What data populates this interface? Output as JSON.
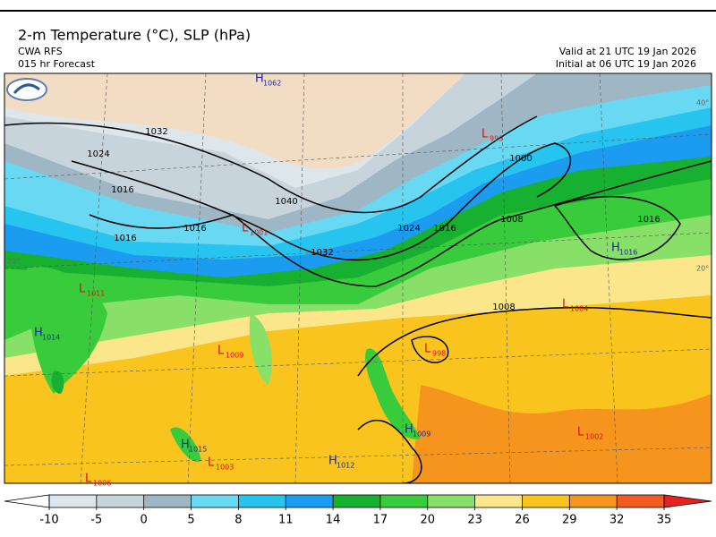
{
  "header": {
    "title": "2-m Temperature (°C), SLP (hPa)",
    "model": "CWA RFS",
    "forecast": "015 hr Forecast",
    "valid": "Valid at 21 UTC 19 Jan 2026",
    "initial": "Initial at 06 UTC 19 Jan 2026"
  },
  "map": {
    "pressure_centers": [
      {
        "type": "H",
        "value": 1062
      },
      {
        "type": "L",
        "value": 993
      },
      {
        "type": "L",
        "value": 1001
      },
      {
        "type": "L",
        "value": 1011
      },
      {
        "type": "H",
        "value": 1014
      },
      {
        "type": "L",
        "value": 1009
      },
      {
        "type": "L",
        "value": 998
      },
      {
        "type": "L",
        "value": 1004
      },
      {
        "type": "H",
        "value": 1016
      },
      {
        "type": "H",
        "value": 1015
      },
      {
        "type": "L",
        "value": 1003
      },
      {
        "type": "H",
        "value": 1012
      },
      {
        "type": "H",
        "value": 1009
      },
      {
        "type": "L",
        "value": 1002
      },
      {
        "type": "L",
        "value": 1006
      }
    ],
    "isobar_labels": [
      1032,
      1024,
      1016,
      1016,
      1016,
      1040,
      1032,
      1024,
      1016,
      1000,
      1008,
      1016,
      1008
    ],
    "lat_labels": [
      "40°",
      "20°",
      "20°"
    ]
  },
  "colorbar": {
    "ticks": [
      -10,
      -5,
      0,
      5,
      8,
      11,
      14,
      17,
      20,
      23,
      26,
      29,
      32,
      35
    ],
    "colors": [
      "#dde6ea",
      "#c8d4dc",
      "#9fb7c4",
      "#69d8f2",
      "#28c4f0",
      "#1c9cf0",
      "#18b030",
      "#38cc3c",
      "#88e068",
      "#fce68c",
      "#f9c41e",
      "#f6951e",
      "#f25c22"
    ],
    "under_color": "#ffffff",
    "over_color": "#e8201e"
  }
}
